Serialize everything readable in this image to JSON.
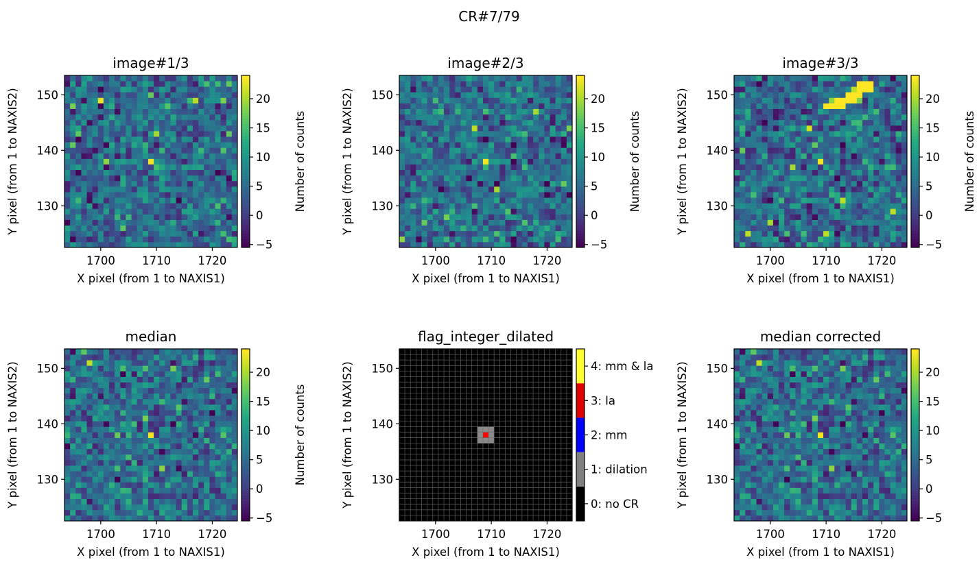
{
  "chart_data": {
    "type": "heatmap",
    "suptitle": "CR#7/79",
    "panels": [
      {
        "id": "image1",
        "title": "image#1/3",
        "colormap": "viridis",
        "colorbar_label": "Number of counts",
        "clim": [
          -5.5,
          24
        ],
        "colorbar_ticks": [
          -5,
          0,
          5,
          10,
          15,
          20
        ],
        "seed": 11,
        "bright_pixels": [
          [
            1700,
            149,
            23
          ],
          [
            1717,
            149,
            21
          ],
          [
            1709,
            138,
            23.5
          ],
          [
            1710,
            143,
            20
          ],
          [
            1701,
            138,
            19
          ],
          [
            1695,
            148,
            18
          ],
          [
            1722,
            149,
            18
          ],
          [
            1709,
            150,
            17
          ],
          [
            1695,
            141,
            17
          ],
          [
            1723,
            143,
            17
          ]
        ]
      },
      {
        "id": "image2",
        "title": "image#2/3",
        "colormap": "viridis",
        "colorbar_label": "Number of counts",
        "clim": [
          -5.5,
          24
        ],
        "colorbar_ticks": [
          -5,
          0,
          5,
          10,
          15,
          20
        ],
        "seed": 23,
        "bright_pixels": [
          [
            1709,
            138,
            23.5
          ],
          [
            1707,
            144,
            21
          ],
          [
            1718,
            147,
            20
          ],
          [
            1711,
            133,
            20
          ],
          [
            1694,
            124,
            19
          ],
          [
            1698,
            127,
            17
          ],
          [
            1724,
            144,
            18
          ],
          [
            1723,
            134,
            17
          ]
        ]
      },
      {
        "id": "image3",
        "title": "image#3/3",
        "colormap": "viridis",
        "colorbar_label": "Number of counts",
        "clim": [
          -5.5,
          24
        ],
        "colorbar_ticks": [
          -5,
          0,
          5,
          10,
          15,
          20
        ],
        "seed": 37,
        "bright_pixels": [
          [
            1709,
            138,
            23.5
          ],
          [
            1710,
            148,
            24
          ],
          [
            1711,
            148,
            24
          ],
          [
            1712,
            148,
            24
          ],
          [
            1713,
            148,
            24
          ],
          [
            1712,
            149,
            24
          ],
          [
            1713,
            149,
            24
          ],
          [
            1714,
            149,
            24
          ],
          [
            1715,
            149,
            24
          ],
          [
            1714,
            150,
            24
          ],
          [
            1715,
            150,
            24
          ],
          [
            1716,
            150,
            24
          ],
          [
            1716,
            151,
            24
          ],
          [
            1717,
            151,
            24
          ],
          [
            1718,
            151,
            24
          ],
          [
            1716,
            152,
            24
          ],
          [
            1717,
            152,
            24
          ],
          [
            1718,
            152,
            24
          ],
          [
            1715,
            151,
            21
          ],
          [
            1711,
            149,
            19
          ],
          [
            1716,
            149,
            18
          ],
          [
            1707,
            144,
            22
          ],
          [
            1704,
            137,
            20
          ],
          [
            1713,
            131,
            21
          ],
          [
            1722,
            129,
            21
          ],
          [
            1696,
            125,
            21
          ],
          [
            1700,
            127,
            20
          ],
          [
            1710,
            125,
            21
          ],
          [
            1708,
            141,
            17
          ],
          [
            1695,
            140,
            17
          ]
        ]
      },
      {
        "id": "median",
        "title": "median",
        "colormap": "viridis",
        "colorbar_label": "Number of counts",
        "clim": [
          -5.5,
          24
        ],
        "colorbar_ticks": [
          -5,
          0,
          5,
          10,
          15,
          20
        ],
        "seed": 51,
        "bright_pixels": [
          [
            1709,
            138,
            23.5
          ],
          [
            1711,
            132,
            19
          ],
          [
            1708,
            141,
            18
          ],
          [
            1713,
            150,
            18
          ],
          [
            1719,
            148,
            17
          ],
          [
            1703,
            138,
            17
          ]
        ]
      },
      {
        "id": "flag",
        "title": "flag_integer_dilated",
        "colormap": "categorical",
        "categories": [
          {
            "value": 0,
            "label": "0: no CR",
            "color": "#000000"
          },
          {
            "value": 1,
            "label": "1: dilation",
            "color": "#808080"
          },
          {
            "value": 2,
            "label": "2: mm",
            "color": "#0000ff"
          },
          {
            "value": 3,
            "label": "3: la",
            "color": "#e00000"
          },
          {
            "value": 4,
            "label": "4: mm & la",
            "color": "#ffff33"
          }
        ],
        "flagged_pixels": [
          [
            1708,
            137,
            1
          ],
          [
            1709,
            137,
            1
          ],
          [
            1710,
            137,
            1
          ],
          [
            1708,
            138,
            1
          ],
          [
            1709,
            138,
            3
          ],
          [
            1710,
            138,
            1
          ],
          [
            1708,
            139,
            1
          ],
          [
            1709,
            139,
            1
          ],
          [
            1710,
            139,
            1
          ]
        ]
      },
      {
        "id": "median_corrected",
        "title": "median corrected",
        "colormap": "viridis",
        "colorbar_label": "",
        "clim": [
          -5.5,
          24
        ],
        "colorbar_ticks": [
          -5,
          0,
          5,
          10,
          15,
          20
        ],
        "seed": 51,
        "bright_pixels": [
          [
            1709,
            138,
            23.5
          ],
          [
            1711,
            132,
            19
          ],
          [
            1708,
            141,
            18
          ],
          [
            1713,
            150,
            18
          ],
          [
            1719,
            148,
            17
          ],
          [
            1703,
            138,
            17
          ]
        ]
      }
    ],
    "xlabel": "X pixel (from 1 to NAXIS1)",
    "ylabel": "Y pixel (from 1 to NAXIS2)",
    "xlim": [
      1693.5,
      1724.5
    ],
    "ylim": [
      122.5,
      153.5
    ],
    "xticks": [
      1700,
      1710,
      1720
    ],
    "yticks": [
      130,
      140,
      150
    ],
    "grid": false
  }
}
